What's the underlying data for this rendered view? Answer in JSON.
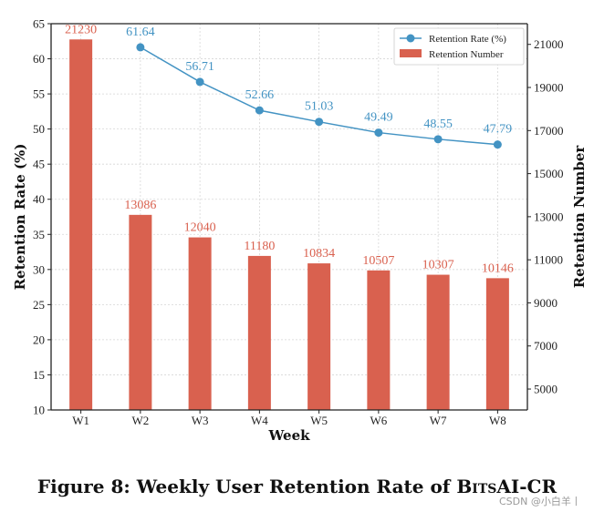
{
  "chart_data": {
    "type": "bar+line",
    "categories": [
      "W1",
      "W2",
      "W3",
      "W4",
      "W5",
      "W6",
      "W7",
      "W8"
    ],
    "series": [
      {
        "name": "Retention Number",
        "type": "bar",
        "axis": "right",
        "color": "#d9614f",
        "values": [
          21230,
          13086,
          12040,
          11180,
          10834,
          10507,
          10307,
          10146
        ],
        "labels": [
          "21230",
          "13086",
          "12040",
          "11180",
          "10834",
          "10507",
          "10307",
          "10146"
        ]
      },
      {
        "name": "Retention Rate (%)",
        "type": "line",
        "axis": "left",
        "color": "#4393c3",
        "x": [
          "W2",
          "W3",
          "W4",
          "W5",
          "W6",
          "W7",
          "W8"
        ],
        "values": [
          61.64,
          56.71,
          52.66,
          51.03,
          49.49,
          48.55,
          47.79
        ],
        "labels": [
          "61.64",
          "56.71",
          "52.66",
          "51.03",
          "49.49",
          "48.55",
          "47.79"
        ]
      }
    ],
    "xlabel": "Week",
    "ylabel": "Retention Rate (%)",
    "y2label": "Retention Number",
    "ylim": [
      10,
      65
    ],
    "yticks": [
      "10",
      "15",
      "20",
      "25",
      "30",
      "35",
      "40",
      "45",
      "50",
      "55",
      "60",
      "65"
    ],
    "y2lim": [
      4028.6,
      21960.9
    ],
    "y2ticks": [
      "5000",
      "7000",
      "9000",
      "11000",
      "13000",
      "15000",
      "17000",
      "19000",
      "21000"
    ],
    "grid": true,
    "legend_position": "top-right"
  },
  "caption": "Figure 8: Weekly User Retention Rate of BitsAI-CR",
  "caption_prefix": "Figure 8: Weekly User Retention Rate of ",
  "caption_brand_first": "B",
  "caption_brand_small": "its",
  "caption_brand_rest": "AI-CR",
  "watermark": "CSDN @小白羊丨"
}
